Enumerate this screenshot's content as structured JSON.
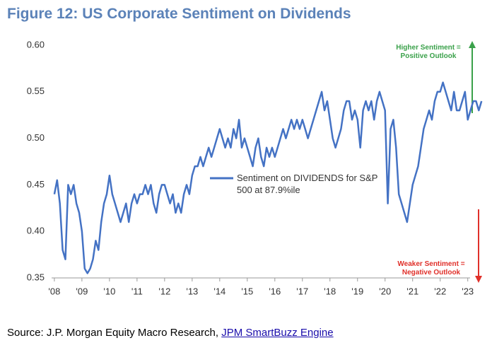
{
  "chart_data": {
    "type": "line",
    "title": "Figure 12: US Corporate Sentiment on Dividends",
    "x": [
      2008.0,
      2008.1,
      2008.2,
      2008.3,
      2008.4,
      2008.5,
      2008.6,
      2008.7,
      2008.8,
      2008.9,
      2009.0,
      2009.1,
      2009.2,
      2009.3,
      2009.4,
      2009.5,
      2009.6,
      2009.7,
      2009.8,
      2009.9,
      2010.0,
      2010.1,
      2010.2,
      2010.3,
      2010.4,
      2010.5,
      2010.6,
      2010.7,
      2010.8,
      2010.9,
      2011.0,
      2011.1,
      2011.2,
      2011.3,
      2011.4,
      2011.5,
      2011.6,
      2011.7,
      2011.8,
      2011.9,
      2012.0,
      2012.1,
      2012.2,
      2012.3,
      2012.4,
      2012.5,
      2012.6,
      2012.7,
      2012.8,
      2012.9,
      2013.0,
      2013.1,
      2013.2,
      2013.3,
      2013.4,
      2013.5,
      2013.6,
      2013.7,
      2013.8,
      2013.9,
      2014.0,
      2014.1,
      2014.2,
      2014.3,
      2014.4,
      2014.5,
      2014.6,
      2014.7,
      2014.8,
      2014.9,
      2015.0,
      2015.1,
      2015.2,
      2015.3,
      2015.4,
      2015.5,
      2015.6,
      2015.7,
      2015.8,
      2015.9,
      2016.0,
      2016.1,
      2016.2,
      2016.3,
      2016.4,
      2016.5,
      2016.6,
      2016.7,
      2016.8,
      2016.9,
      2017.0,
      2017.1,
      2017.2,
      2017.3,
      2017.4,
      2017.5,
      2017.6,
      2017.7,
      2017.8,
      2017.9,
      2018.0,
      2018.1,
      2018.2,
      2018.3,
      2018.4,
      2018.5,
      2018.6,
      2018.7,
      2018.8,
      2018.9,
      2019.0,
      2019.1,
      2019.2,
      2019.3,
      2019.4,
      2019.5,
      2019.6,
      2019.7,
      2019.8,
      2019.9,
      2020.0,
      2020.1,
      2020.2,
      2020.3,
      2020.4,
      2020.5,
      2020.6,
      2020.7,
      2020.8,
      2020.9,
      2021.0,
      2021.1,
      2021.2,
      2021.3,
      2021.4,
      2021.5,
      2021.6,
      2021.7,
      2021.8,
      2021.9,
      2022.0,
      2022.1,
      2022.2,
      2022.3,
      2022.4,
      2022.5,
      2022.6,
      2022.7,
      2022.8,
      2022.9,
      2023.0,
      2023.1,
      2023.2,
      2023.3,
      2023.4,
      2023.5
    ],
    "series": [
      {
        "name": "Sentiment on DIVIDENDS for S&P 500 at 87.9%ile",
        "color": "#4472c4",
        "values": [
          0.44,
          0.455,
          0.43,
          0.38,
          0.37,
          0.45,
          0.44,
          0.45,
          0.43,
          0.42,
          0.4,
          0.36,
          0.355,
          0.36,
          0.37,
          0.39,
          0.38,
          0.41,
          0.43,
          0.44,
          0.46,
          0.44,
          0.43,
          0.42,
          0.41,
          0.42,
          0.43,
          0.41,
          0.43,
          0.44,
          0.43,
          0.44,
          0.44,
          0.45,
          0.44,
          0.45,
          0.43,
          0.42,
          0.44,
          0.45,
          0.45,
          0.44,
          0.43,
          0.44,
          0.42,
          0.43,
          0.42,
          0.44,
          0.45,
          0.44,
          0.46,
          0.47,
          0.47,
          0.48,
          0.47,
          0.48,
          0.49,
          0.48,
          0.49,
          0.5,
          0.51,
          0.5,
          0.49,
          0.5,
          0.49,
          0.51,
          0.5,
          0.52,
          0.49,
          0.5,
          0.49,
          0.48,
          0.47,
          0.49,
          0.5,
          0.48,
          0.47,
          0.49,
          0.48,
          0.49,
          0.48,
          0.49,
          0.5,
          0.51,
          0.5,
          0.51,
          0.52,
          0.51,
          0.52,
          0.51,
          0.52,
          0.51,
          0.5,
          0.51,
          0.52,
          0.53,
          0.54,
          0.55,
          0.53,
          0.54,
          0.52,
          0.5,
          0.49,
          0.5,
          0.51,
          0.53,
          0.54,
          0.54,
          0.52,
          0.53,
          0.52,
          0.49,
          0.53,
          0.54,
          0.53,
          0.54,
          0.52,
          0.54,
          0.55,
          0.54,
          0.53,
          0.43,
          0.51,
          0.52,
          0.49,
          0.44,
          0.43,
          0.42,
          0.41,
          0.43,
          0.45,
          0.46,
          0.47,
          0.49,
          0.51,
          0.52,
          0.53,
          0.52,
          0.54,
          0.55,
          0.55,
          0.56,
          0.55,
          0.54,
          0.53,
          0.55,
          0.53,
          0.53,
          0.54,
          0.55,
          0.52,
          0.53,
          0.54,
          0.54,
          0.53,
          0.54
        ]
      }
    ],
    "xlim": [
      2007.9,
      2023.7
    ],
    "xticks": [
      {
        "value": 2008,
        "label": "'08"
      },
      {
        "value": 2009,
        "label": "'09"
      },
      {
        "value": 2010,
        "label": "'10"
      },
      {
        "value": 2011,
        "label": "'11"
      },
      {
        "value": 2012,
        "label": "'12"
      },
      {
        "value": 2013,
        "label": "'13"
      },
      {
        "value": 2014,
        "label": "'14"
      },
      {
        "value": 2015,
        "label": "'15"
      },
      {
        "value": 2016,
        "label": "'16"
      },
      {
        "value": 2017,
        "label": "'17"
      },
      {
        "value": 2018,
        "label": "'18"
      },
      {
        "value": 2019,
        "label": "'19"
      },
      {
        "value": 2020,
        "label": "'20"
      },
      {
        "value": 2021,
        "label": "'21"
      },
      {
        "value": 2022,
        "label": "'22"
      },
      {
        "value": 2023,
        "label": "'23"
      }
    ],
    "ylim": [
      0.35,
      0.6
    ],
    "yticks": [
      0.35,
      {
        "value": 0.4,
        "label": "0.40"
      },
      0.45,
      {
        "value": 0.5,
        "label": "0.50"
      },
      0.55,
      {
        "value": 0.6,
        "label": "0.60"
      }
    ],
    "annotations": [
      "Higher Sentiment = Positive Outlook",
      "Weaker Sentiment = Negative Outlook"
    ],
    "source": "Source: J.P. Morgan Equity Macro Research,",
    "source_link": "JPM SmartBuzz Engine"
  }
}
